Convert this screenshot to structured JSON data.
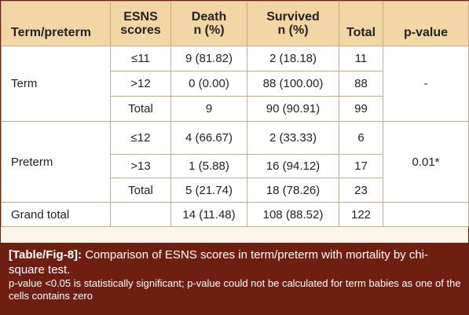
{
  "table": {
    "headers": {
      "group": "Term/preterm",
      "scores": [
        "ESNS",
        "scores"
      ],
      "death": [
        "Death",
        "n (%)"
      ],
      "survived": [
        "Survived",
        "n (%)"
      ],
      "total": "Total",
      "pvalue": "p-value"
    },
    "term": {
      "label": "Term",
      "pvalue": "-",
      "rows": [
        {
          "score": "≤11",
          "death": "9 (81.82)",
          "survived": "2 (18.18)",
          "total": "11"
        },
        {
          "score": ">12",
          "death": "0 (0.00)",
          "survived": "88 (100.00)",
          "total": "88"
        },
        {
          "score": "Total",
          "death": "9",
          "survived": "90 (90.91)",
          "total": "99"
        }
      ]
    },
    "preterm": {
      "label": "Preterm",
      "pvalue": "0.01*",
      "rows": [
        {
          "score": "≤12",
          "death": "4 (66.67)",
          "survived": "2 (33.33)",
          "total": "6"
        },
        {
          "score": ">13",
          "death": "1 (5.88)",
          "survived": "16 (94.12)",
          "total": "17"
        },
        {
          "score": "Total",
          "death": "5 (21.74)",
          "survived": "18 (78.26)",
          "total": "23"
        }
      ]
    },
    "grand_total": {
      "label": "Grand total",
      "death": "14 (11.48)",
      "survived": "108 (88.52)",
      "total": "122"
    }
  },
  "caption": {
    "label": "[Table/Fig-8]:",
    "text": "Comparison of ESNS scores in term/preterm with mortality by chi-square test.",
    "note": "p-value <0.05 is statistically significant; p-value could not be calculated for term babies as one of the cells contains zero"
  },
  "colors": {
    "header_bg": "#f3d6a6",
    "caption_bg": "#6e1f12",
    "border": "#c9a789"
  }
}
